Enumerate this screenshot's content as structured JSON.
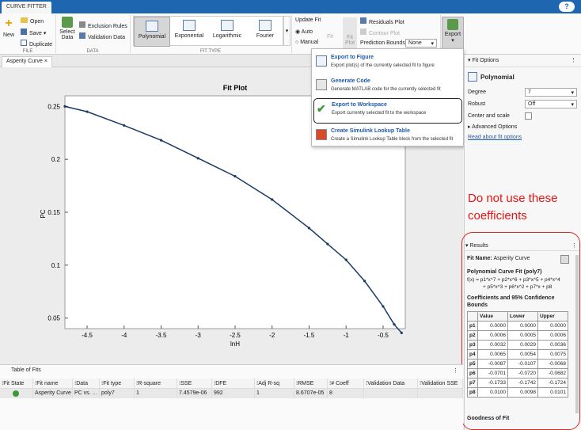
{
  "app": {
    "tab": "CURVE FITTER",
    "help": "?"
  },
  "ribbon": {
    "file": {
      "new": "New",
      "open": "Open",
      "save": "Save",
      "duplicate": "Duplicate",
      "label": "FILE"
    },
    "data": {
      "select": "Select",
      "select2": "Data",
      "exclusion": "Exclusion Rules",
      "validation": "Validation Data",
      "label": "DATA"
    },
    "fittype": {
      "items": [
        "Polynomial",
        "Exponential",
        "Logarithmic",
        "Fourier"
      ],
      "selected": "Polynomial",
      "label": "FIT TYPE"
    },
    "update": {
      "title": "Update Fit",
      "auto": "Auto",
      "manual": "Manual",
      "fit": "Fit"
    },
    "plots": {
      "fitplot": "Fit",
      "fitplot2": "Plot",
      "residuals": "Residuals Plot",
      "contour": "Contour Plot",
      "predbounds": "Prediction Bounds",
      "none": "None"
    },
    "export": "Export"
  },
  "doc": {
    "tab": "Asperity Curve",
    "close": "×"
  },
  "chart_data": {
    "type": "scatter",
    "title": "Fit Plot",
    "xlabel": "lnH",
    "ylabel": "PC",
    "xlim": [
      -4.8,
      -0.2
    ],
    "ylim": [
      0.04,
      0.26
    ],
    "xticks": [
      -4.5,
      -4,
      -3.5,
      -3,
      -2.5,
      -2,
      -1.5,
      -1,
      -0.5
    ],
    "yticks": [
      0.05,
      0.1,
      0.15,
      0.2,
      0.25
    ],
    "x": [
      -4.8,
      -4.5,
      -4.0,
      -3.5,
      -3.0,
      -2.5,
      -2.0,
      -1.5,
      -1.25,
      -1.0,
      -0.75,
      -0.5,
      -0.35,
      -0.25
    ],
    "y": [
      0.25,
      0.245,
      0.232,
      0.218,
      0.201,
      0.184,
      0.162,
      0.135,
      0.12,
      0.105,
      0.085,
      0.061,
      0.044,
      0.036
    ],
    "grid": false
  },
  "menu": [
    {
      "title": "Export to Figure",
      "desc": "Export plot(s) of the currently selected fit to figure"
    },
    {
      "title": "Generate Code",
      "desc": "Generate MATLAB code for the currently selected fit"
    },
    {
      "title": "Export to Workspace",
      "desc": "Export currently selected fit to the workspace"
    },
    {
      "title": "Create Simulink Lookup Table",
      "desc": "Create a Simulink Lookup Table block from the selected fit"
    }
  ],
  "fitoptions": {
    "header": "Fit Options",
    "type": "Polynomial",
    "degree_label": "Degree",
    "degree": "7",
    "robust_label": "Robust",
    "robust": "Off",
    "center_label": "Center and scale",
    "advanced": "Advanced Options",
    "link": "Read about fit options"
  },
  "annotation": {
    "line1": "Do not use these",
    "line2": "coefficients"
  },
  "results": {
    "header": "Results",
    "fitname_label": "Fit Name:",
    "fitname": "Asperity Curve",
    "model_title": "Polynomial Curve Fit (poly7)",
    "eq1": "f(x) = p1*x^7 + p2*x^6 + p3*x^5 + p4*x^4",
    "eq2": "+ p5*x^3 + p6*x^2 + p7*x + p8",
    "coef_title": "Coefficients and 95% Confidence",
    "coef_title2": "Bounds",
    "cols": [
      "Value",
      "Lower",
      "Upper"
    ],
    "rows": [
      [
        "p1",
        "0.0000",
        "0.0000",
        "0.0000"
      ],
      [
        "p2",
        "0.0006",
        "0.0005",
        "0.0006"
      ],
      [
        "p3",
        "0.0032",
        "0.0029",
        "0.0036"
      ],
      [
        "p4",
        "0.0065",
        "0.0054",
        "0.0075"
      ],
      [
        "p5",
        "-0.0087",
        "-0.0107",
        "-0.0068"
      ],
      [
        "p6",
        "-0.0701",
        "-0.0720",
        "-0.0682"
      ],
      [
        "p7",
        "-0.1733",
        "-0.1742",
        "-0.1724"
      ],
      [
        "p8",
        "0.0100",
        "0.0098",
        "0.0101"
      ]
    ],
    "gof": "Goodness of Fit"
  },
  "table": {
    "title": "Table of Fits",
    "headers": [
      "Fit State",
      "Fit name",
      "Data",
      "Fit type",
      "R-square",
      "SSE",
      "DFE",
      "Adj R-sq",
      "RMSE",
      "# Coeff",
      "Validation Data",
      "Validation SSE"
    ],
    "row": [
      "",
      "Asperity Curve",
      "PC vs. ...",
      "poly7",
      "1",
      "7.4579e-06",
      "992",
      "1",
      "8.6707e-05",
      "8",
      "",
      ""
    ]
  }
}
